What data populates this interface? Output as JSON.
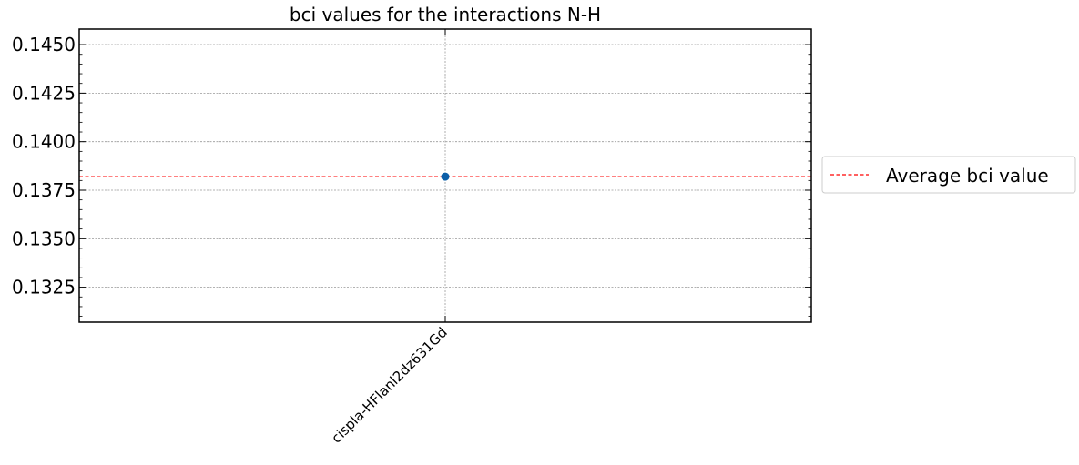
{
  "chart_data": {
    "type": "scatter",
    "title": "bci values for the interactions N-H",
    "xlabel": "",
    "ylabel": "",
    "categories": [
      "cispla-HFlanl2dz631Gd"
    ],
    "series": [
      {
        "values": [
          0.1382
        ],
        "color": "#0b5ea8"
      }
    ],
    "average_line": {
      "label": "Average bci value",
      "value": 0.1382,
      "color": "#ff0000",
      "style": "dashed"
    },
    "ylim": [
      0.1307,
      0.1458
    ],
    "yticks": [
      0.1325,
      0.135,
      0.1375,
      0.14,
      0.1425,
      0.145
    ],
    "ytick_labels": [
      "0.1325",
      "0.1350",
      "0.1375",
      "0.1400",
      "0.1425",
      "0.1450"
    ],
    "grid": true,
    "legend_position": "outside-right"
  }
}
